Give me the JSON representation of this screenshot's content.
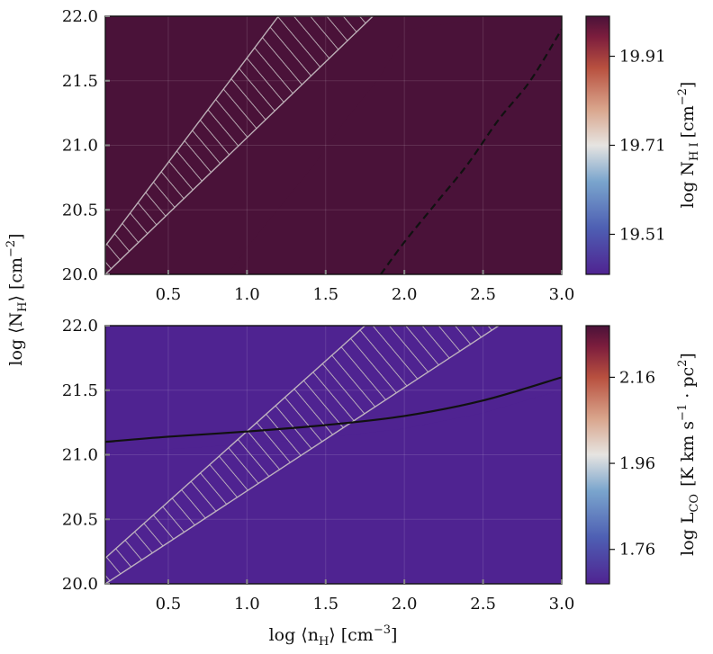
{
  "chart_data": [
    {
      "type": "heatmap",
      "panel": "top",
      "x_range": [
        0.1,
        3.0
      ],
      "y_range": [
        20.0,
        22.0
      ],
      "x_ticks": [
        0.5,
        1.0,
        1.5,
        2.0,
        2.5,
        3.0
      ],
      "x_tick_labels": [
        "0.5",
        "1.0",
        "1.5",
        "2.0",
        "2.5",
        "3.0"
      ],
      "y_ticks": [
        20.0,
        20.5,
        21.0,
        21.5,
        22.0
      ],
      "y_tick_labels": [
        "20.0",
        "20.5",
        "21.0",
        "21.5",
        "22.0"
      ],
      "grid": true,
      "colormap": "twilight_shifted",
      "colorbar": {
        "label": "log N_HI [cm^-2]",
        "label_main": "log N",
        "label_sub": "H I",
        "label_unit": "[cm",
        "label_exp": "−2",
        "label_close": "]",
        "range": [
          19.42,
          20.0
        ],
        "ticks": [
          19.51,
          19.71,
          19.91
        ],
        "tick_labels": [
          "19.51",
          "19.71",
          "19.91"
        ]
      },
      "contour_dashed": [
        [
          1.85,
          20.0
        ],
        [
          2.0,
          20.25
        ],
        [
          2.2,
          20.55
        ],
        [
          2.4,
          20.85
        ],
        [
          2.6,
          21.2
        ],
        [
          2.8,
          21.5
        ],
        [
          3.0,
          21.9
        ]
      ],
      "hatched_band": {
        "lower": [
          [
            0.1,
            20.0
          ],
          [
            1.8,
            22.0
          ]
        ],
        "upper": [
          [
            0.1,
            20.22
          ],
          [
            1.2,
            22.0
          ]
        ],
        "x_end": 1.8
      }
    },
    {
      "type": "heatmap",
      "panel": "bottom",
      "x_range": [
        0.1,
        3.0
      ],
      "y_range": [
        20.0,
        22.0
      ],
      "x_ticks": [
        0.5,
        1.0,
        1.5,
        2.0,
        2.5,
        3.0
      ],
      "x_tick_labels": [
        "0.5",
        "1.0",
        "1.5",
        "2.0",
        "2.5",
        "3.0"
      ],
      "y_ticks": [
        20.0,
        20.5,
        21.0,
        21.5,
        22.0
      ],
      "y_tick_labels": [
        "20.0",
        "20.5",
        "21.0",
        "21.5",
        "22.0"
      ],
      "grid": true,
      "colormap": "twilight_shifted",
      "colorbar": {
        "label": "log L_CO [K km s^-1 · pc^2]",
        "label_main": "log L",
        "label_sub": "CO",
        "label_unit": "[K km s",
        "label_exp": "−1",
        "label_mid": " · pc",
        "label_exp2": "2",
        "label_close": "]",
        "range": [
          1.68,
          2.28
        ],
        "ticks": [
          1.76,
          1.96,
          2.16
        ],
        "tick_labels": [
          "1.76",
          "1.96",
          "2.16"
        ]
      },
      "contour_solid": [
        [
          0.1,
          21.1
        ],
        [
          0.5,
          21.14
        ],
        [
          1.0,
          21.18
        ],
        [
          1.5,
          21.23
        ],
        [
          2.0,
          21.3
        ],
        [
          2.5,
          21.42
        ],
        [
          3.0,
          21.6
        ]
      ],
      "hatched_band": {
        "lower": [
          [
            0.1,
            20.0
          ],
          [
            2.6,
            22.0
          ]
        ],
        "upper": [
          [
            0.1,
            20.2
          ],
          [
            1.75,
            22.0
          ]
        ],
        "x_end": 2.6
      }
    }
  ],
  "shared": {
    "xlabel": "log ⟨n_H⟩ [cm^-3]",
    "xlabel_main": "log ⟨n",
    "xlabel_sub": "H",
    "xlabel_close": "⟩ [cm",
    "xlabel_exp": "−3",
    "xlabel_end": "]",
    "ylabel": "log ⟨N_H⟩ [cm^-2]",
    "ylabel_main": "log ⟨N",
    "ylabel_sub": "H",
    "ylabel_close": "⟩ [cm",
    "ylabel_exp": "−2",
    "ylabel_end": "]"
  }
}
